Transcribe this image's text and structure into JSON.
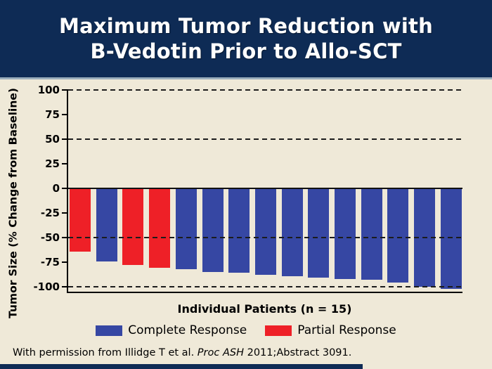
{
  "header": {
    "title_line1": "Maximum Tumor Reduction with",
    "title_line2": "B-Vedotin Prior to Allo-SCT"
  },
  "chart_data": {
    "type": "bar",
    "title": "Maximum Tumor Reduction with B-Vedotin Prior to Allo-SCT",
    "xlabel": "Individual Patients (n = 15)",
    "ylabel": "Tumor Size (% Change from Baseline)",
    "ylim": [
      -107,
      100
    ],
    "y_ticks": [
      100,
      75,
      50,
      25,
      0,
      -25,
      -50,
      -75,
      -100
    ],
    "dashed_gridlines": [
      100,
      50,
      -50,
      -100
    ],
    "zero_line": 0,
    "grid": "dashed horizontal",
    "legend_position": "bottom",
    "x_tick_labels": "none (individual patients unlabeled)",
    "series": [
      {
        "name": "Maximum tumor reduction (% change from baseline)",
        "values": [
          -64,
          -74,
          -78,
          -81,
          -82,
          -85,
          -86,
          -88,
          -89,
          -91,
          -92,
          -93,
          -96,
          -100,
          -102
        ],
        "response": [
          "partial",
          "complete",
          "partial",
          "partial",
          "complete",
          "complete",
          "complete",
          "complete",
          "complete",
          "complete",
          "complete",
          "complete",
          "complete",
          "complete",
          "complete"
        ]
      }
    ]
  },
  "legend": [
    {
      "label": "Complete Response",
      "key": "complete",
      "color": "#3647A3"
    },
    {
      "label": "Partial Response",
      "key": "partial",
      "color": "#EE2027"
    }
  ],
  "footer": {
    "citation_prefix": "With permission from Illidge T et al. ",
    "citation_italic": "Proc ASH",
    "citation_suffix": " 2011;Abstract 3091."
  },
  "colors": {
    "header_background": "#0E2B55",
    "header_text": "#FFFFFF",
    "slide_background": "#EFE9D8",
    "divider": "#9BAEBC",
    "complete_response_bar": "#3647A3",
    "partial_response_bar": "#EE2027",
    "gridline": "#1C1C1C"
  }
}
